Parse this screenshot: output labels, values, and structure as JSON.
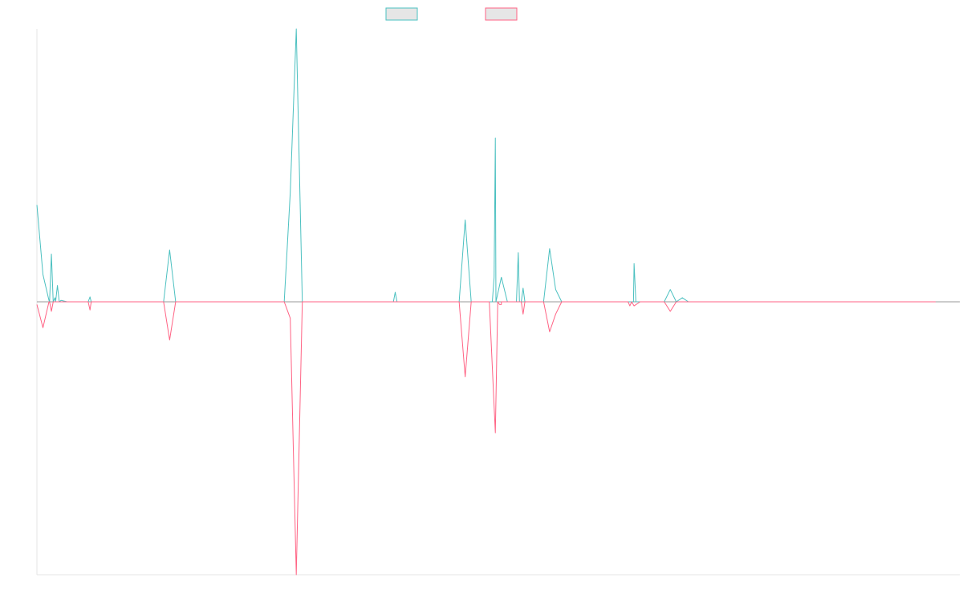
{
  "chart_data": {
    "type": "line",
    "title": "",
    "xlabel": "",
    "ylabel": "",
    "ylim": [
      -1,
      1
    ],
    "grid": false,
    "legend_position": "top-center",
    "x": [
      0,
      1,
      2,
      3,
      4,
      5,
      6,
      7,
      8,
      9,
      10,
      11,
      12,
      13,
      14,
      15,
      16,
      17,
      18,
      19,
      20,
      21,
      22,
      23,
      24,
      25,
      26,
      27,
      28,
      29,
      30,
      31,
      32,
      33,
      34,
      35,
      36,
      37,
      38,
      39,
      40,
      41,
      42,
      43,
      44,
      45,
      46,
      47,
      48,
      49,
      50,
      51,
      52,
      53,
      54,
      55,
      56,
      57,
      58,
      59,
      60,
      61,
      62,
      63,
      64,
      65,
      66,
      67,
      68,
      69,
      70,
      71,
      72,
      73,
      74,
      75,
      76,
      77,
      78,
      79,
      80,
      81,
      82,
      83,
      84,
      85,
      86,
      87,
      88,
      89,
      90,
      91,
      92,
      93,
      94,
      95,
      96,
      97,
      98,
      99,
      100,
      101,
      102,
      103,
      104,
      105,
      106,
      107,
      108,
      109,
      110,
      111,
      112,
      113,
      114,
      115,
      116,
      117,
      118,
      119,
      120,
      121,
      122,
      123,
      124,
      125,
      126,
      127,
      128,
      129,
      130,
      131,
      132,
      133,
      134,
      135,
      136,
      137,
      138,
      139,
      140,
      141,
      142,
      143,
      144,
      145,
      146,
      147,
      148,
      149
    ],
    "series": [
      {
        "name": "",
        "color": "#4bc0c0",
        "values": [
          0.355,
          0.1,
          0.005,
          0.015,
          0.005,
          0.0,
          0.0,
          0.0,
          0.0,
          0.0,
          0.0,
          0.0,
          0.0,
          0.0,
          0.0,
          0.0,
          0.0,
          0.0,
          0.0,
          0.0,
          0.0,
          0.0,
          0.19,
          0.0,
          0.0,
          0.0,
          0.0,
          0.0,
          0.0,
          0.0,
          0.0,
          0.0,
          0.0,
          0.0,
          0.0,
          0.0,
          0.0,
          0.0,
          0.0,
          0.0,
          0.0,
          0.0,
          0.4,
          1.0,
          0.0,
          0.0,
          0.0,
          0.0,
          0.0,
          0.0,
          0.0,
          0.0,
          0.0,
          0.0,
          0.0,
          0.0,
          0.0,
          0.0,
          0.0,
          0.0,
          0.0,
          0.0,
          0.0,
          0.0,
          0.0,
          0.0,
          0.0,
          0.0,
          0.0,
          0.0,
          0.0,
          0.3,
          0.0,
          0.0,
          0.0,
          0.0,
          0.6,
          0.09,
          0.0,
          0.0,
          0.0,
          0.0,
          0.0,
          0.0,
          0.0,
          0.195,
          0.045,
          0.0,
          0.0,
          0.0,
          0.0,
          0.0,
          0.0,
          0.0,
          0.0,
          0.0,
          0.0,
          0.0,
          0.0,
          0.14,
          0.0,
          0.0,
          0.0,
          0.0,
          0.0,
          0.045,
          0.0,
          0.015,
          0.0,
          0.0,
          0.0,
          0.0,
          0.0,
          0.0,
          0.0,
          0.0,
          0.0,
          0.0,
          0.0,
          0.0,
          0.0,
          0.0,
          0.0,
          0.0,
          0.0,
          0.0,
          0.0,
          0.0,
          0.0,
          0.0,
          0.0,
          0.0,
          0.0,
          0.0,
          0.0,
          0.0,
          0.0,
          0.0,
          0.0,
          0.0,
          0.0,
          0.0,
          0.0,
          0.0,
          0.0,
          0.0,
          0.0,
          0.0,
          0.0,
          0.0
        ]
      },
      {
        "name": "",
        "color": "#ff6384",
        "values": [
          -0.01,
          -0.095,
          0.0,
          0.0,
          0.0,
          0.0,
          0.0,
          0.0,
          0.0,
          0.0,
          0.0,
          0.0,
          0.0,
          0.0,
          0.0,
          0.0,
          0.0,
          0.0,
          0.0,
          0.0,
          0.0,
          0.0,
          -0.14,
          0.0,
          0.0,
          0.0,
          0.0,
          0.0,
          0.0,
          0.0,
          0.0,
          0.0,
          0.0,
          0.0,
          0.0,
          0.0,
          0.0,
          0.0,
          0.0,
          0.0,
          0.0,
          0.0,
          -0.06,
          -1.0,
          0.0,
          0.0,
          0.0,
          0.0,
          0.0,
          0.0,
          0.0,
          0.0,
          0.0,
          0.0,
          0.0,
          0.0,
          0.0,
          0.0,
          0.0,
          0.0,
          0.0,
          0.0,
          0.0,
          0.0,
          0.0,
          0.0,
          0.0,
          0.0,
          0.0,
          0.0,
          0.0,
          -0.275,
          0.0,
          0.0,
          0.0,
          0.0,
          -0.48,
          -0.01,
          0.0,
          0.0,
          0.0,
          0.0,
          0.0,
          0.0,
          0.0,
          -0.11,
          -0.045,
          0.0,
          0.0,
          0.0,
          0.0,
          0.0,
          0.0,
          0.0,
          0.0,
          0.0,
          0.0,
          0.0,
          0.0,
          -0.015,
          0.0,
          0.0,
          0.0,
          0.0,
          0.0,
          -0.035,
          0.0,
          0.0,
          0.0,
          0.0,
          0.0,
          0.0,
          0.0,
          0.0,
          0.0,
          0.0,
          0.0,
          0.0,
          0.0,
          0.0,
          0.0,
          0.0,
          0.0,
          0.0,
          0.0,
          0.0,
          0.0,
          0.0,
          0.0,
          0.0,
          0.0,
          0.0,
          0.0,
          0.0,
          0.0,
          0.0,
          0.0,
          0.0,
          0.0,
          0.0,
          0.0,
          0.0,
          0.0,
          0.0,
          0.0,
          0.0,
          0.0,
          0.0,
          0.0,
          0.0
        ]
      }
    ],
    "extra_spikes": [
      {
        "series": 0,
        "x": 2.4,
        "value": 0.175
      },
      {
        "series": 0,
        "x": 3.4,
        "value": 0.06
      },
      {
        "series": 0,
        "x": 8.8,
        "value": 0.018
      },
      {
        "series": 1,
        "x": 2.4,
        "value": -0.035
      },
      {
        "series": 1,
        "x": 8.8,
        "value": -0.03
      },
      {
        "series": 0,
        "x": 59.4,
        "value": 0.035
      },
      {
        "series": 0,
        "x": 75.8,
        "value": 0.09
      },
      {
        "series": 1,
        "x": 76.7,
        "value": -0.01
      },
      {
        "series": 0,
        "x": 79.8,
        "value": 0.18
      },
      {
        "series": 0,
        "x": 80.6,
        "value": 0.05
      },
      {
        "series": 1,
        "x": 80.6,
        "value": -0.045
      },
      {
        "series": 0,
        "x": 99.0,
        "value": 0.14
      },
      {
        "series": 1,
        "x": 98.3,
        "value": -0.015
      },
      {
        "series": 0,
        "x": 98.6,
        "value": 0.0
      }
    ]
  },
  "legend": {
    "items": [
      {
        "label": "",
        "stroke": "#4bc0c0",
        "fill": "#e6e6e6"
      },
      {
        "label": "",
        "stroke": "#ff6384",
        "fill": "#e6e6e6"
      }
    ]
  }
}
